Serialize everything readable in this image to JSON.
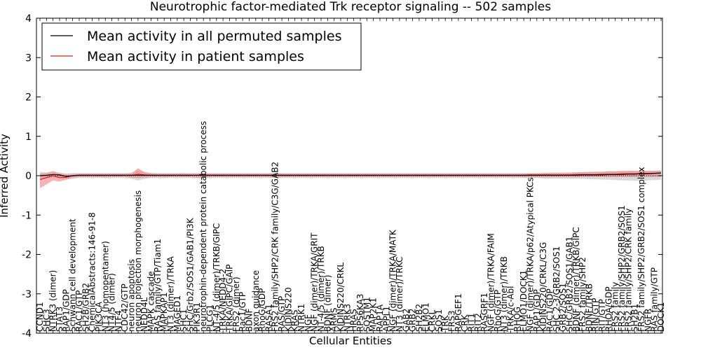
{
  "chart_data": {
    "type": "line",
    "title": "Neurotrophic factor-mediated Trk receptor signaling -- 502 samples",
    "xlabel": "Cellular Entities",
    "ylabel": "Inferred Activity",
    "ylim": [
      -4,
      4
    ],
    "yticks": [
      -4,
      -3,
      -2,
      -1,
      0,
      1,
      2,
      3,
      4
    ],
    "legend_position": "top-left",
    "colors": {
      "permuted": "#000000",
      "permuted_band": "#bfbfbf",
      "patient": "#e31a1c",
      "patient_band": "#f08080",
      "zero_line": "#000000"
    },
    "categories": [
      "CCND1",
      "SHC3",
      "NTRK3 (dimer)",
      "STAT3",
      "RAP1/GDP",
      "Schwann cell development",
      "RAC1/GTP",
      "SH2B/GRB2",
      "ChemicalAbstracts:146-91-8",
      "PIK3CA",
      "NT3 (homopentamer)",
      "NT4/5 (dimer)",
      "NTF4",
      "CDC42/GTP",
      "neuron apoptosis",
      "neuron projection morphogenesis",
      "NEDD4L",
      "MAPK cascade",
      "RAS family/GTP/Tiam1",
      "MAPKAP1",
      "NT3 (dimer)/TRKA",
      "MAGED1",
      "SHC1",
      "SHC/Grb2/SOS1/GAB1/PI3K",
      "PIK3R1",
      "neurotrophin-dependent protein catabolic process",
      "PLCG1",
      "NT-4/5 (dimer)/TRKB/GIPC",
      "TRKA/NEDD4-2",
      "TRKA/GIPC/GAIP",
      "FRS2 (dimer)",
      "Rac1/GTP",
      "BDNF",
      "axon guidance",
      "RhoG/GDP",
      "RASA1",
      "FRS2 family/SHP2/CRK family/C3G/GAB2",
      "RAS/GTP",
      "KIDINS220",
      "KRAS",
      "NTRK1",
      "NGF",
      "NGF (dimer)/TRKA/GRIT",
      "NT-4/5 (dimer)/TRKB",
      "BDNF (dimer)",
      "ARMS",
      "KIDINS220/CRKL",
      "NTRK3",
      "HRAS",
      "RPS6KA3",
      "SQSTM1",
      "MAP2K1",
      "RAP1A",
      "APPL1",
      "NGF (dimer)/TRKA/MATK",
      "NT3 (dimer)/TRKC",
      "GAB2",
      "GRB2",
      "SH2B2",
      "ELMO1",
      "CRKL",
      "SOS1",
      "TRK",
      "FRS3",
      "RAPGEF1",
      "CRK",
      "RIT1",
      "RIT2",
      "RASGRF1",
      "NGF (dimer)/TRKA/FAIM",
      "RhoG/GTP",
      "NT3 (dimer)/TRKB",
      "TRKA/c-Abl",
      "RHOG",
      "ELMO1/DOCK1",
      "NGF (dimer)/TRKA/p62/Atypical PKCs",
      "RAP1/GDP",
      "KIDINS220/CRKL/C3G",
      "RAC1/GDP",
      "SHC 2-3/GRB2/SOS1",
      "GRB2/SOS1",
      "SHC/GRB2/SOS1/GAB1",
      "BDNF (dimer)/TRKB/GIPC",
      "FRS2 family/SHP2",
      "BDNF/TRKB",
      "RIN/GTP",
      "RIT/GTP",
      "RHOA/GDP",
      "FRS2 family",
      "FRS2 family/SHP2/GRB2/SOS1",
      "FRS2 family/SHP2/CRK family",
      "SH2B1",
      "FRS2 family/SHP2/GRB2/SOS1 complex",
      "NGFR",
      "RAS family/GTP",
      "DOCK1"
    ],
    "visible_labels": [
      "CCND1",
      "SHC3",
      "NTRK3 (dimer)",
      "STAT3",
      "RAP1/GDP",
      "Schwann cell development",
      "RAC1/GTP",
      "SH2B/GRB2",
      "ChemicalAbstracts:146-91-8",
      "PIK3CA",
      "NT3 (homopentamer)",
      "NT4/5 (dimer)",
      "NTF4",
      "CDC42/GTP",
      "neuron apoptosis",
      "neuron projection morphogenesis",
      "NEDD4L",
      "MAPK cascade",
      "RAS family/GTP/Tiam1",
      "MAPKAP1",
      "NT3 (dimer)/TRKA",
      "MAGED1",
      "SHC1",
      "SHC/Grb2/SOS1/GAB1/PI3K",
      "PIK3R1",
      "neurotrophin-dependent protein catabolic process",
      "PLCG1",
      "NT-4/5 (dimer)/TRKB/GIPC",
      "TRKA/NEDD4-2",
      "TRKA/GIPC/GAIP",
      "FRS2 (dimer)",
      "Rac1/GTP",
      "BDNF",
      "axon guidance",
      "RhoG/GDP",
      "RASA1",
      "FRS2 family/SHP2/CRK family/C3G/GAB2",
      "RAS/GTP",
      "KIDINS220",
      "KRAS",
      "NTRK1",
      "NGF",
      "NGF (dimer)/TRKA/GRIT",
      "NT-4/5 (dimer)/TRKB",
      "BDNF (dimer)",
      "ARMS",
      "KIDINS220/CRKL",
      "NTRK3",
      "HRAS",
      "RPS6KA3",
      "SQSTM1",
      "MAP2K1",
      "RAP1A",
      "APPL1",
      "NGF (dimer)/TRKA/MATK",
      "NT3 (dimer)/TRKC",
      "GAB2",
      "GRB2",
      "SH2B2",
      "ELMO1",
      "CRKL",
      "SOS1",
      "TRK",
      "FRS3",
      "RAPGEF1",
      "CRK",
      "RIT1",
      "RIT2",
      "RASGRF1",
      "NGF (dimer)/TRKA/FAIM",
      "RhoG/GTP",
      "NT3 (dimer)/TRKB",
      "TRKA/c-Abl",
      "RHOG",
      "ELMO1/DOCK1",
      "NGF (dimer)/TRKA/p62/Atypical PKCs",
      "RAP1/GDP",
      "KIDINS220/CRKL/C3G",
      "RAC1/GDP",
      "SHC 2-3/GRB2/SOS1",
      "GRB2/SOS1",
      "SHC/GRB2/SOS1/GAB1",
      "BDNF (dimer)/TRKB/GIPC",
      "FRS2 family/SHP2",
      "BDNF/TRKB",
      "RIN/GTP",
      "RIT/GTP",
      "RHOA/GDP",
      "FRS2 family",
      "FRS2 family/SHP2/GRB2/SOS1",
      "FRS2 family/SHP2/CRK family",
      "SH2B1",
      "FRS2 family/SHP2/GRB2/SOS1 complex",
      "NGFR",
      "RAS family/GTP",
      "DOCK1"
    ],
    "series": [
      {
        "name": "Mean activity in all permuted samples",
        "color": "#000000",
        "values": [
          0.0,
          0.01,
          0.03,
          0.02,
          -0.02,
          0.0,
          0.01,
          0.01,
          0.01,
          0.01,
          0.01,
          0.01,
          0.01,
          0.01,
          0.01,
          0.01,
          0.01,
          0.01,
          0.01,
          0.01,
          0.01,
          0.01,
          0.01,
          0.01,
          0.01,
          0.01,
          0.01,
          0.01,
          0.01,
          0.01,
          0.01,
          0.01,
          0.01,
          0.01,
          0.01,
          0.01,
          0.01,
          0.01,
          0.01,
          0.01,
          0.01,
          0.01,
          0.01,
          0.01,
          0.01,
          0.01,
          0.01,
          0.01,
          0.01,
          0.01,
          0.01,
          0.01,
          0.01,
          0.01,
          0.01,
          0.01,
          0.01,
          0.01,
          0.01,
          0.01,
          0.01,
          0.01,
          0.01,
          0.01,
          0.01,
          0.01,
          0.01,
          0.01,
          0.01,
          0.01,
          0.01,
          0.01,
          0.01,
          0.01,
          0.01,
          0.01,
          0.01,
          0.01,
          0.01,
          0.01,
          0.01,
          0.01,
          0.01,
          0.02,
          0.02,
          0.02,
          0.02,
          0.03,
          0.03,
          0.03,
          0.04,
          0.04,
          0.05,
          0.05,
          0.06,
          0.07
        ],
        "lower": [
          -0.1,
          -0.06,
          -0.04,
          -0.05,
          -0.1,
          -0.08,
          -0.05,
          -0.05,
          -0.05,
          -0.05,
          -0.06,
          -0.05,
          -0.05,
          -0.05,
          -0.08,
          -0.12,
          -0.08,
          -0.06,
          -0.05,
          -0.06,
          -0.05,
          -0.05,
          -0.05,
          -0.05,
          -0.06,
          -0.07,
          -0.05,
          -0.05,
          -0.05,
          -0.05,
          -0.05,
          -0.05,
          -0.05,
          -0.05,
          -0.05,
          -0.05,
          -0.06,
          -0.05,
          -0.05,
          -0.05,
          -0.05,
          -0.05,
          -0.05,
          -0.05,
          -0.05,
          -0.05,
          -0.05,
          -0.05,
          -0.05,
          -0.05,
          -0.05,
          -0.05,
          -0.05,
          -0.05,
          -0.05,
          -0.05,
          -0.05,
          -0.05,
          -0.05,
          -0.05,
          -0.05,
          -0.05,
          -0.05,
          -0.05,
          -0.05,
          -0.05,
          -0.05,
          -0.05,
          -0.05,
          -0.05,
          -0.05,
          -0.05,
          -0.05,
          -0.05,
          -0.06,
          -0.06,
          -0.06,
          -0.07,
          -0.07,
          -0.07,
          -0.07,
          -0.08,
          -0.08,
          -0.08,
          -0.09,
          -0.09,
          -0.1,
          -0.1,
          -0.11,
          -0.12,
          -0.12,
          -0.13,
          -0.13,
          -0.12,
          -0.11,
          -0.1
        ],
        "upper": [
          0.1,
          0.08,
          0.09,
          0.08,
          0.06,
          0.07,
          0.07,
          0.07,
          0.07,
          0.07,
          0.07,
          0.07,
          0.07,
          0.07,
          0.08,
          0.13,
          0.09,
          0.07,
          0.07,
          0.07,
          0.07,
          0.07,
          0.07,
          0.07,
          0.07,
          0.08,
          0.07,
          0.07,
          0.07,
          0.07,
          0.07,
          0.07,
          0.07,
          0.07,
          0.07,
          0.07,
          0.07,
          0.07,
          0.07,
          0.07,
          0.07,
          0.07,
          0.07,
          0.07,
          0.07,
          0.07,
          0.07,
          0.07,
          0.07,
          0.07,
          0.07,
          0.07,
          0.07,
          0.07,
          0.07,
          0.07,
          0.07,
          0.07,
          0.07,
          0.07,
          0.07,
          0.07,
          0.07,
          0.07,
          0.07,
          0.07,
          0.07,
          0.07,
          0.07,
          0.07,
          0.07,
          0.07,
          0.07,
          0.07,
          0.07,
          0.07,
          0.07,
          0.07,
          0.08,
          0.08,
          0.08,
          0.08,
          0.09,
          0.09,
          0.1,
          0.1,
          0.1,
          0.11,
          0.11,
          0.12,
          0.12,
          0.13,
          0.13,
          0.13,
          0.13,
          0.14
        ]
      },
      {
        "name": "Mean activity in patient samples",
        "color": "#e31a1c",
        "values": [
          -0.1,
          -0.05,
          0.0,
          -0.05,
          -0.04,
          0.0,
          0.01,
          0.01,
          0.01,
          0.01,
          0.01,
          0.01,
          0.01,
          0.01,
          0.01,
          0.04,
          0.02,
          0.01,
          0.01,
          0.01,
          0.01,
          0.01,
          0.01,
          0.01,
          0.01,
          0.01,
          0.01,
          0.01,
          0.01,
          0.01,
          0.01,
          0.01,
          0.01,
          0.01,
          0.01,
          0.01,
          0.01,
          0.01,
          0.01,
          0.01,
          0.01,
          0.01,
          0.01,
          0.01,
          0.01,
          0.01,
          0.01,
          0.01,
          0.01,
          0.01,
          0.01,
          0.01,
          0.01,
          0.01,
          0.01,
          0.01,
          0.01,
          0.01,
          0.01,
          0.01,
          0.01,
          0.01,
          0.01,
          0.01,
          0.01,
          0.01,
          0.01,
          0.01,
          0.01,
          0.01,
          0.01,
          0.01,
          0.01,
          0.01,
          0.01,
          0.02,
          0.02,
          0.02,
          0.02,
          0.02,
          0.02,
          0.02,
          0.03,
          0.03,
          0.03,
          0.03,
          0.04,
          0.04,
          0.04,
          0.05,
          0.05,
          0.05,
          0.06,
          0.06,
          0.06,
          0.07
        ],
        "lower": [
          -0.32,
          -0.22,
          -0.12,
          -0.15,
          -0.1,
          -0.05,
          -0.04,
          -0.04,
          -0.04,
          -0.04,
          -0.04,
          -0.04,
          -0.04,
          -0.04,
          -0.05,
          -0.06,
          -0.05,
          -0.04,
          -0.04,
          -0.04,
          -0.04,
          -0.04,
          -0.04,
          -0.04,
          -0.05,
          -0.05,
          -0.04,
          -0.04,
          -0.04,
          -0.04,
          -0.04,
          -0.04,
          -0.04,
          -0.04,
          -0.04,
          -0.04,
          -0.05,
          -0.04,
          -0.04,
          -0.04,
          -0.04,
          -0.04,
          -0.04,
          -0.04,
          -0.04,
          -0.04,
          -0.04,
          -0.04,
          -0.04,
          -0.04,
          -0.04,
          -0.04,
          -0.04,
          -0.04,
          -0.04,
          -0.04,
          -0.04,
          -0.04,
          -0.04,
          -0.04,
          -0.04,
          -0.04,
          -0.04,
          -0.04,
          -0.04,
          -0.04,
          -0.04,
          -0.04,
          -0.04,
          -0.04,
          -0.04,
          -0.04,
          -0.04,
          -0.04,
          -0.04,
          -0.04,
          -0.04,
          -0.04,
          -0.04,
          -0.04,
          -0.04,
          -0.04,
          -0.04,
          -0.03,
          -0.03,
          -0.03,
          -0.03,
          -0.03,
          -0.03,
          -0.03,
          -0.03,
          -0.03,
          -0.03,
          -0.03,
          -0.03,
          -0.02
        ],
        "upper": [
          0.05,
          0.07,
          0.12,
          0.06,
          0.03,
          0.04,
          0.05,
          0.05,
          0.05,
          0.05,
          0.05,
          0.05,
          0.05,
          0.05,
          0.06,
          0.19,
          0.09,
          0.06,
          0.05,
          0.05,
          0.05,
          0.05,
          0.06,
          0.05,
          0.05,
          0.06,
          0.05,
          0.05,
          0.05,
          0.05,
          0.05,
          0.05,
          0.05,
          0.05,
          0.05,
          0.05,
          0.06,
          0.05,
          0.05,
          0.05,
          0.05,
          0.05,
          0.05,
          0.05,
          0.05,
          0.05,
          0.05,
          0.05,
          0.05,
          0.05,
          0.05,
          0.05,
          0.05,
          0.05,
          0.05,
          0.05,
          0.05,
          0.05,
          0.05,
          0.05,
          0.05,
          0.05,
          0.05,
          0.05,
          0.05,
          0.05,
          0.05,
          0.05,
          0.05,
          0.05,
          0.05,
          0.05,
          0.05,
          0.05,
          0.05,
          0.06,
          0.06,
          0.07,
          0.07,
          0.07,
          0.07,
          0.08,
          0.08,
          0.09,
          0.09,
          0.1,
          0.1,
          0.11,
          0.11,
          0.12,
          0.12,
          0.12,
          0.12,
          0.12,
          0.12,
          0.12
        ]
      }
    ]
  }
}
